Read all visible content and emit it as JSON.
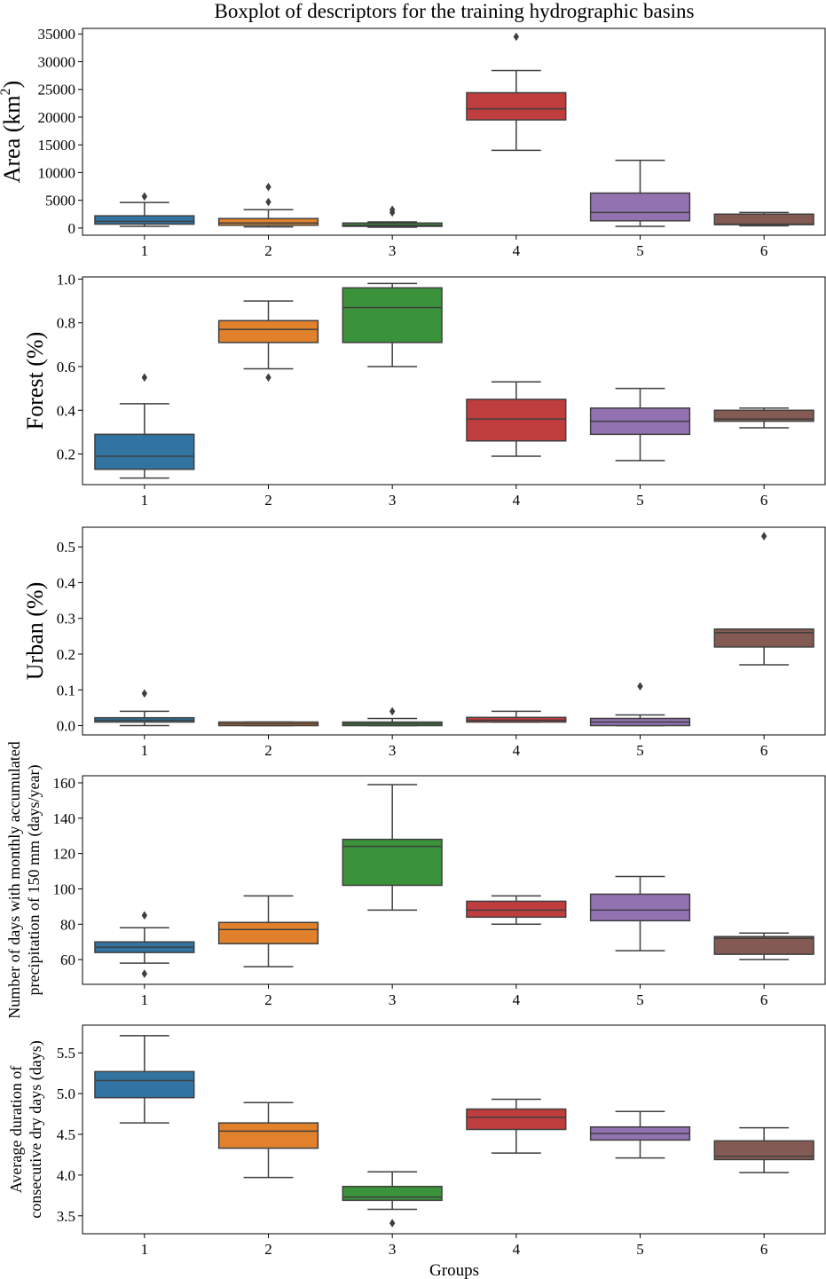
{
  "title": "Boxplot of descriptors for the training hydrographic basins",
  "colors": {
    "palette": [
      "#3274a1",
      "#e1812c",
      "#3a923a",
      "#c03d3e",
      "#9372b2",
      "#845b53"
    ],
    "line": "#3f3f3f"
  },
  "chart_data": [
    {
      "type": "box",
      "ylabel": "Area  (km2)",
      "ylabel_main": "Area  (km",
      "ylabel_sup": "2",
      "ylabel_tail": ")",
      "xlabel": "",
      "categories": [
        "1",
        "2",
        "3",
        "4",
        "5",
        "6"
      ],
      "ylim": [
        -1300,
        36000
      ],
      "yticks": [
        0,
        5000,
        10000,
        15000,
        20000,
        25000,
        30000,
        35000
      ],
      "ytick_labels": [
        "0",
        "5000",
        "10000",
        "15000",
        "20000",
        "25000",
        "30000",
        "35000"
      ],
      "boxes": [
        {
          "whislo": 300,
          "q1": 700,
          "med": 1200,
          "q3": 2200,
          "whishi": 4600,
          "fliers": [
            5700
          ]
        },
        {
          "whislo": 200,
          "q1": 500,
          "med": 900,
          "q3": 1700,
          "whishi": 3300,
          "fliers": [
            4700,
            7400
          ]
        },
        {
          "whislo": 150,
          "q1": 300,
          "med": 500,
          "q3": 900,
          "whishi": 1100,
          "fliers": [
            2800,
            3300
          ]
        },
        {
          "whislo": 14000,
          "q1": 19500,
          "med": 21500,
          "q3": 24400,
          "whishi": 28400,
          "fliers": [
            34500
          ]
        },
        {
          "whislo": 300,
          "q1": 1300,
          "med": 2800,
          "q3": 6300,
          "whishi": 12200,
          "fliers": []
        },
        {
          "whislo": 400,
          "q1": 600,
          "med": 700,
          "q3": 2500,
          "whishi": 2800,
          "fliers": []
        }
      ]
    },
    {
      "type": "box",
      "ylabel": "Forest  (%)",
      "xlabel": "",
      "categories": [
        "1",
        "2",
        "3",
        "4",
        "5",
        "6"
      ],
      "ylim": [
        0.06,
        1.01
      ],
      "yticks": [
        0.2,
        0.4,
        0.6,
        0.8,
        1.0
      ],
      "ytick_labels": [
        "0.2",
        "0.4",
        "0.6",
        "0.8",
        "1.0"
      ],
      "boxes": [
        {
          "whislo": 0.09,
          "q1": 0.13,
          "med": 0.19,
          "q3": 0.29,
          "whishi": 0.43,
          "fliers": [
            0.55
          ]
        },
        {
          "whislo": 0.59,
          "q1": 0.71,
          "med": 0.77,
          "q3": 0.81,
          "whishi": 0.9,
          "fliers": [
            0.55
          ]
        },
        {
          "whislo": 0.6,
          "q1": 0.71,
          "med": 0.87,
          "q3": 0.96,
          "whishi": 0.98,
          "fliers": []
        },
        {
          "whislo": 0.19,
          "q1": 0.26,
          "med": 0.36,
          "q3": 0.45,
          "whishi": 0.53,
          "fliers": []
        },
        {
          "whislo": 0.17,
          "q1": 0.29,
          "med": 0.35,
          "q3": 0.41,
          "whishi": 0.5,
          "fliers": []
        },
        {
          "whislo": 0.32,
          "q1": 0.35,
          "med": 0.36,
          "q3": 0.4,
          "whishi": 0.41,
          "fliers": []
        }
      ]
    },
    {
      "type": "box",
      "ylabel": "Urban  (%)",
      "xlabel": "",
      "categories": [
        "1",
        "2",
        "3",
        "4",
        "5",
        "6"
      ],
      "ylim": [
        -0.026,
        0.555
      ],
      "yticks": [
        0.0,
        0.1,
        0.2,
        0.3,
        0.4,
        0.5
      ],
      "ytick_labels": [
        "0.0",
        "0.1",
        "0.2",
        "0.3",
        "0.4",
        "0.5"
      ],
      "boxes": [
        {
          "whislo": 0.0,
          "q1": 0.01,
          "med": 0.015,
          "q3": 0.022,
          "whishi": 0.04,
          "fliers": [
            0.09
          ]
        },
        {
          "whislo": 0.0,
          "q1": 0.0,
          "med": 0.005,
          "q3": 0.01,
          "whishi": 0.01,
          "fliers": []
        },
        {
          "whislo": 0.0,
          "q1": 0.0,
          "med": 0.005,
          "q3": 0.01,
          "whishi": 0.02,
          "fliers": [
            0.04
          ]
        },
        {
          "whislo": 0.01,
          "q1": 0.01,
          "med": 0.015,
          "q3": 0.023,
          "whishi": 0.04,
          "fliers": []
        },
        {
          "whislo": 0.0,
          "q1": 0.0,
          "med": 0.01,
          "q3": 0.02,
          "whishi": 0.03,
          "fliers": [
            0.11
          ]
        },
        {
          "whislo": 0.17,
          "q1": 0.22,
          "med": 0.26,
          "q3": 0.27,
          "whishi": 0.27,
          "fliers": [
            0.53
          ]
        }
      ]
    },
    {
      "type": "box",
      "ylabel": "Number of days with monthly accumulated precipitation of 150 mm (days/year)",
      "ylabel_lines": [
        "Number of days with monthly accumulated",
        "precipitation of 150 mm (days/year)"
      ],
      "xlabel": "",
      "categories": [
        "1",
        "2",
        "3",
        "4",
        "5",
        "6"
      ],
      "ylim": [
        46,
        164
      ],
      "yticks": [
        60,
        80,
        100,
        120,
        140,
        160
      ],
      "ytick_labels": [
        "60",
        "80",
        "100",
        "120",
        "140",
        "160"
      ],
      "boxes": [
        {
          "whislo": 58,
          "q1": 64,
          "med": 67,
          "q3": 70,
          "whishi": 78,
          "fliers": [
            52,
            85
          ]
        },
        {
          "whislo": 56,
          "q1": 69,
          "med": 77,
          "q3": 81,
          "whishi": 96,
          "fliers": []
        },
        {
          "whislo": 88,
          "q1": 102,
          "med": 124,
          "q3": 128,
          "whishi": 159,
          "fliers": []
        },
        {
          "whislo": 80,
          "q1": 84,
          "med": 88,
          "q3": 93,
          "whishi": 96,
          "fliers": []
        },
        {
          "whislo": 65,
          "q1": 82,
          "med": 88,
          "q3": 97,
          "whishi": 107,
          "fliers": []
        },
        {
          "whislo": 60,
          "q1": 63,
          "med": 72,
          "q3": 73,
          "whishi": 75,
          "fliers": []
        }
      ]
    },
    {
      "type": "box",
      "ylabel": "Average duration of consecutive dry days (days)",
      "ylabel_lines": [
        "Average duration of",
        "consecutive dry days (days)"
      ],
      "xlabel": "Groups",
      "categories": [
        "1",
        "2",
        "3",
        "4",
        "5",
        "6"
      ],
      "ylim": [
        3.28,
        5.84
      ],
      "yticks": [
        3.5,
        4.0,
        4.5,
        5.0,
        5.5
      ],
      "ytick_labels": [
        "3.5",
        "4.0",
        "4.5",
        "5.0",
        "5.5"
      ],
      "boxes": [
        {
          "whislo": 4.64,
          "q1": 4.95,
          "med": 5.16,
          "q3": 5.27,
          "whishi": 5.71,
          "fliers": []
        },
        {
          "whislo": 3.97,
          "q1": 4.33,
          "med": 4.54,
          "q3": 4.64,
          "whishi": 4.89,
          "fliers": []
        },
        {
          "whislo": 3.58,
          "q1": 3.69,
          "med": 3.73,
          "q3": 3.86,
          "whishi": 4.04,
          "fliers": [
            3.41
          ]
        },
        {
          "whislo": 4.27,
          "q1": 4.56,
          "med": 4.71,
          "q3": 4.81,
          "whishi": 4.93,
          "fliers": []
        },
        {
          "whislo": 4.21,
          "q1": 4.43,
          "med": 4.51,
          "q3": 4.59,
          "whishi": 4.78,
          "fliers": []
        },
        {
          "whislo": 4.03,
          "q1": 4.19,
          "med": 4.23,
          "q3": 4.42,
          "whishi": 4.58,
          "fliers": []
        }
      ]
    }
  ]
}
